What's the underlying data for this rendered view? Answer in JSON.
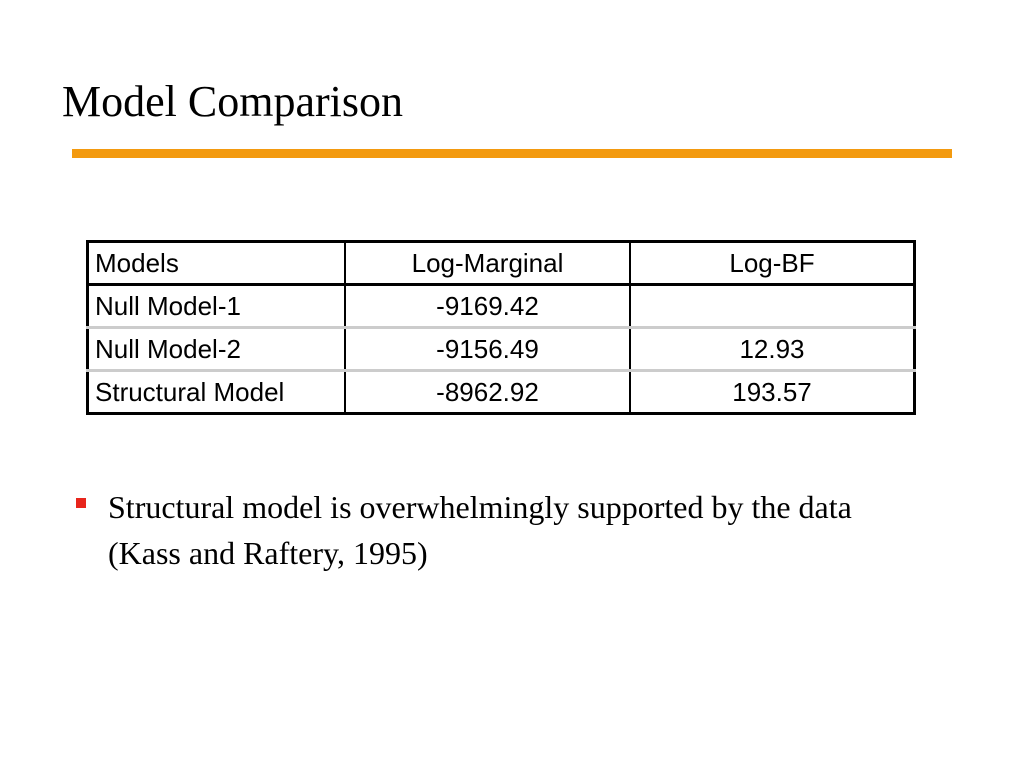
{
  "header": {
    "title": "Model Comparison"
  },
  "table": {
    "columns": [
      "Models",
      "Log-Marginal",
      "Log-BF"
    ],
    "rows": [
      [
        "Null Model-1",
        "-9169.42",
        null
      ],
      [
        "Null Model-2",
        "-9156.49",
        "12.93"
      ],
      [
        "Structural Model",
        "-8962.92",
        "193.57"
      ]
    ]
  },
  "bullets": [
    "Structural model is overwhelmingly supported by the data (Kass and Raftery, 1995)"
  ]
}
